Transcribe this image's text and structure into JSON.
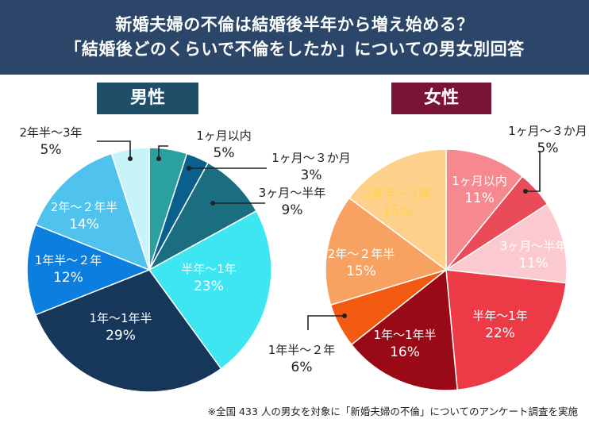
{
  "title_line1": "新婚夫婦の不倫は結婚後半年から増え始める？",
  "title_line2": "「結婚後どのくらいで不倫をしたか」についての男女別回答",
  "footnote": "※全国 433 人の男女を対象に「新婚夫婦の不倫」についてのアンケート調査を実施",
  "chart_data": [
    {
      "type": "pie",
      "title": "男性",
      "unit": "%",
      "slices": [
        {
          "label": "1ヶ月以内",
          "value": 5,
          "color": "#2aa0a0"
        },
        {
          "label": "1ヶ月～３か月",
          "value": 3,
          "color": "#0b5f8c"
        },
        {
          "label": "3ヶ月～半年",
          "value": 9,
          "color": "#1a6e80"
        },
        {
          "label": "半年～1年",
          "value": 23,
          "color": "#3ee6f2"
        },
        {
          "label": "1年～1年半",
          "value": 29,
          "color": "#17375a"
        },
        {
          "label": "1年半～２年",
          "value": 12,
          "color": "#0c7ee0"
        },
        {
          "label": "2年～２年半",
          "value": 14,
          "color": "#4fc2ee"
        },
        {
          "label": "2年半～3年",
          "value": 5,
          "color": "#c6f4f8"
        }
      ]
    },
    {
      "type": "pie",
      "title": "女性",
      "unit": "%",
      "slices": [
        {
          "label": "1ヶ月以内",
          "value": 11,
          "color": "#f5898f"
        },
        {
          "label": "1ヶ月～３か月",
          "value": 5,
          "color": "#ea4b58"
        },
        {
          "label": "3ヶ月～半年",
          "value": 11,
          "color": "#fbc9d0"
        },
        {
          "label": "半年～1年",
          "value": 22,
          "color": "#ec3a47"
        },
        {
          "label": "1年～1年半",
          "value": 16,
          "color": "#9a0a16"
        },
        {
          "label": "1年半～２年",
          "value": 6,
          "color": "#f25a12"
        },
        {
          "label": "2年～２年半",
          "value": 15,
          "color": "#f8a261"
        },
        {
          "label": "2年半～３年",
          "value": 15,
          "color": "#fdd08b"
        }
      ]
    }
  ]
}
